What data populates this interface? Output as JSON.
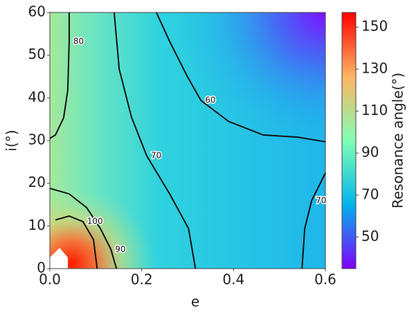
{
  "chart_data": {
    "type": "contour",
    "xlabel": "e",
    "ylabel": "i(°)",
    "colorbar_label": "Resonance angle(°)",
    "xlim": [
      0,
      0.6
    ],
    "ylim": [
      0,
      60
    ],
    "xticks": [
      {
        "value": 0,
        "label": "0.0"
      },
      {
        "value": 0.2,
        "label": "0.2"
      },
      {
        "value": 0.4,
        "label": "0.4"
      },
      {
        "value": 0.6,
        "label": "0.6"
      }
    ],
    "yticks": [
      0,
      10,
      20,
      30,
      40,
      50,
      60
    ],
    "clim": [
      35,
      157
    ],
    "cticks": [
      50,
      70,
      90,
      110,
      130,
      150
    ],
    "line_color": "#111111",
    "contours": [
      {
        "level": 60,
        "x": [
          0.232,
          0.261,
          0.299,
          0.329,
          0.389,
          0.465,
          0.54,
          0.6
        ],
        "y": [
          60,
          53.2,
          45.1,
          39.4,
          34.5,
          31.3,
          30.8,
          29.7
        ]
      },
      {
        "level": 70,
        "x": [
          0.14,
          0.151,
          0.178,
          0.211,
          0.261,
          0.302,
          0.317
        ],
        "y": [
          60,
          46.7,
          35.4,
          26.4,
          17.5,
          9.4,
          0
        ]
      },
      {
        "level": 70,
        "x": [
          0.6,
          0.57,
          0.555,
          0.549
        ],
        "y": [
          22.4,
          15.9,
          9.4,
          0
        ]
      },
      {
        "level": 80,
        "x": [
          0.042,
          0.042,
          0.039,
          0.03,
          0.012,
          0
        ],
        "y": [
          60,
          53.2,
          41.8,
          35.3,
          31.3,
          30.5
        ]
      },
      {
        "level": 90,
        "x": [
          0,
          0.042,
          0.08,
          0.11,
          0.133,
          0.145
        ],
        "y": [
          18.8,
          17.5,
          14.3,
          9.4,
          4.5,
          0
        ]
      },
      {
        "level": 100,
        "x": [
          0.012,
          0.042,
          0.072,
          0.095,
          0.103
        ],
        "y": [
          11.4,
          12.3,
          11.0,
          6.8,
          0
        ]
      }
    ]
  }
}
